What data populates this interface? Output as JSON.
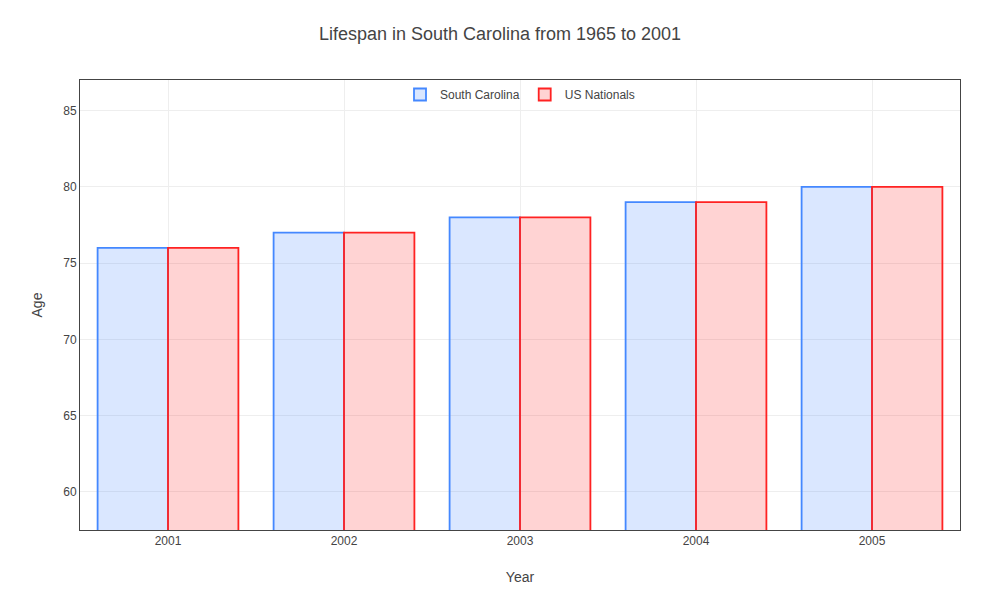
{
  "chart_data": {
    "type": "bar",
    "title": "Lifespan in South Carolina from 1965 to 2001",
    "xlabel": "Year",
    "ylabel": "Age",
    "categories": [
      "2001",
      "2002",
      "2003",
      "2004",
      "2005"
    ],
    "series": [
      {
        "name": "South Carolina",
        "color": "#4488ff",
        "values": [
          76,
          77,
          78,
          79,
          80
        ]
      },
      {
        "name": "US Nationals",
        "color": "#ff2222",
        "values": [
          76,
          77,
          78,
          79,
          80
        ]
      }
    ],
    "ylim": [
      57.5,
      87
    ],
    "yticks": [
      60,
      65,
      70,
      75,
      80,
      85
    ],
    "grid": true,
    "legend": "upper center"
  }
}
